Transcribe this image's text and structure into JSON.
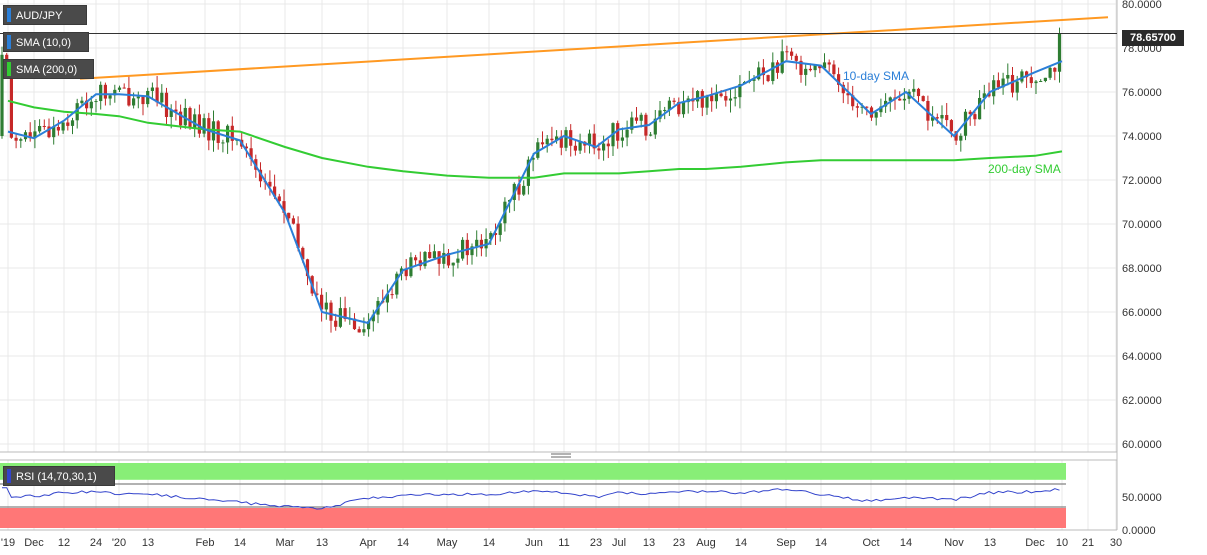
{
  "header": {
    "symbol": "AUD/JPY",
    "sma10_label": "SMA (10,0)",
    "sma200_label": "SMA (200,0)",
    "last_price": "78.65700"
  },
  "rsi_panel": {
    "label": "RSI (14,70,30,1)"
  },
  "annotations": {
    "sma10": "10-day SMA",
    "sma200": "200-day SMA"
  },
  "colors": {
    "up_candle": "#2e7d32",
    "down_candle": "#c62828",
    "sma10": "#2b7fd8",
    "sma200": "#33cc33",
    "trendline": "#ff9922",
    "rsi_line": "#3344cc",
    "rsi_overbought_zone": "#88ee77",
    "rsi_oversold_zone": "#ff7777"
  },
  "chart_data": [
    {
      "type": "candlestick",
      "title": "AUD/JPY",
      "ylim": [
        59.5,
        80.5
      ],
      "y_ticks": [
        "80.0000",
        "78.0000",
        "76.0000",
        "74.0000",
        "72.0000",
        "70.0000",
        "68.0000",
        "66.0000",
        "64.0000",
        "62.0000",
        "60.0000"
      ],
      "x_ticks": [
        "'19",
        "Dec",
        "12",
        "24",
        "'20",
        "13",
        "Feb",
        "14",
        "Mar",
        "13",
        "Apr",
        "14",
        "May",
        "14",
        "Jun",
        "11",
        "23",
        "Jul",
        "13",
        "23",
        "Aug",
        "14",
        "Sep",
        "14",
        "Oct",
        "14",
        "Nov",
        "13",
        "Dec",
        "10",
        "21",
        "30"
      ],
      "last_price": 78.657,
      "series": [
        {
          "name": "10-day SMA",
          "kind": "line",
          "points": [
            {
              "x": "'19",
              "y": 74.2
            },
            {
              "x": "Dec",
              "y": 73.9
            },
            {
              "x": "12",
              "y": 74.7
            },
            {
              "x": "24",
              "y": 75.9
            },
            {
              "x": "'20",
              "y": 75.9
            },
            {
              "x": "13",
              "y": 75.8
            },
            {
              "x": "Feb",
              "y": 74.3
            },
            {
              "x": "14",
              "y": 73.8
            },
            {
              "x": "Mar",
              "y": 70.5
            },
            {
              "x": "13",
              "y": 66.0
            },
            {
              "x": "Apr",
              "y": 65.5
            },
            {
              "x": "14",
              "y": 67.9
            },
            {
              "x": "May",
              "y": 68.6
            },
            {
              "x": "14",
              "y": 69.1
            },
            {
              "x": "Jun",
              "y": 73.2
            },
            {
              "x": "11",
              "y": 74.0
            },
            {
              "x": "23",
              "y": 73.5
            },
            {
              "x": "Jul",
              "y": 74.3
            },
            {
              "x": "13",
              "y": 74.5
            },
            {
              "x": "23",
              "y": 75.5
            },
            {
              "x": "Aug",
              "y": 75.8
            },
            {
              "x": "14",
              "y": 76.3
            },
            {
              "x": "Sep",
              "y": 77.4
            },
            {
              "x": "14",
              "y": 77.2
            },
            {
              "x": "Oct",
              "y": 75.0
            },
            {
              "x": "14",
              "y": 76.0
            },
            {
              "x": "Nov",
              "y": 74.0
            },
            {
              "x": "13",
              "y": 76.0
            },
            {
              "x": "Dec",
              "y": 76.9
            },
            {
              "x": "10",
              "y": 77.4
            }
          ]
        },
        {
          "name": "200-day SMA",
          "kind": "line",
          "points": [
            {
              "x": "'19",
              "y": 75.6
            },
            {
              "x": "Dec",
              "y": 75.3
            },
            {
              "x": "12",
              "y": 75.1
            },
            {
              "x": "24",
              "y": 75.0
            },
            {
              "x": "'20",
              "y": 74.9
            },
            {
              "x": "13",
              "y": 74.6
            },
            {
              "x": "Feb",
              "y": 74.3
            },
            {
              "x": "14",
              "y": 74.2
            },
            {
              "x": "Mar",
              "y": 73.5
            },
            {
              "x": "13",
              "y": 73.0
            },
            {
              "x": "Apr",
              "y": 72.6
            },
            {
              "x": "14",
              "y": 72.4
            },
            {
              "x": "May",
              "y": 72.2
            },
            {
              "x": "14",
              "y": 72.1
            },
            {
              "x": "Jun",
              "y": 72.1
            },
            {
              "x": "11",
              "y": 72.3
            },
            {
              "x": "23",
              "y": 72.3
            },
            {
              "x": "Jul",
              "y": 72.3
            },
            {
              "x": "13",
              "y": 72.4
            },
            {
              "x": "23",
              "y": 72.5
            },
            {
              "x": "Aug",
              "y": 72.5
            },
            {
              "x": "14",
              "y": 72.6
            },
            {
              "x": "Sep",
              "y": 72.8
            },
            {
              "x": "14",
              "y": 72.9
            },
            {
              "x": "Oct",
              "y": 72.9
            },
            {
              "x": "14",
              "y": 72.9
            },
            {
              "x": "Nov",
              "y": 72.9
            },
            {
              "x": "13",
              "y": 73.0
            },
            {
              "x": "Dec",
              "y": 73.1
            },
            {
              "x": "10",
              "y": 73.3
            }
          ]
        },
        {
          "name": "Resistance trendline",
          "kind": "line",
          "points": [
            {
              "x": "24",
              "y": 76.6
            },
            {
              "x": "30",
              "y": 79.4
            }
          ]
        }
      ]
    },
    {
      "type": "line",
      "title": "RSI (14,70,30,1)",
      "ylim": [
        0,
        100
      ],
      "y_ticks": [
        "50.0000",
        "0.0000"
      ],
      "overbought": 70,
      "oversold": 30,
      "series": [
        {
          "name": "RSI",
          "values": [
            48,
            52,
            58,
            60,
            54,
            56,
            45,
            40,
            33,
            30,
            48,
            52,
            55,
            55,
            62,
            58,
            50,
            58,
            55,
            60,
            60,
            58,
            64,
            55,
            42,
            50,
            45,
            58,
            60,
            65
          ]
        }
      ]
    }
  ]
}
